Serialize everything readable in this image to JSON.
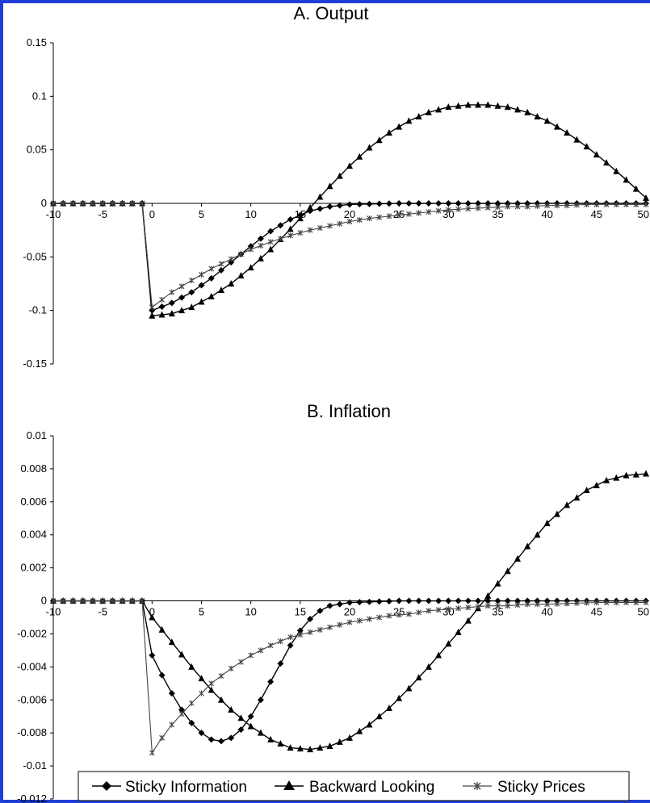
{
  "chart_data": [
    {
      "panel": "A",
      "type": "line",
      "title": "A. Output",
      "xlabel": "",
      "ylabel": "",
      "xlim": [
        -10,
        50
      ],
      "ylim": [
        -0.15,
        0.15
      ],
      "x_ticks": [
        "-10",
        "-5",
        "0",
        "5",
        "10",
        "15",
        "20",
        "25",
        "30",
        "35",
        "40",
        "45",
        "50"
      ],
      "y_ticks": [
        "0.15",
        "0.1",
        "0.05",
        "0",
        "-0.05",
        "-0.1",
        "-0.15"
      ],
      "grid": false,
      "series": [
        {
          "name": "Sticky Information",
          "marker": "diamond",
          "color": "#000000",
          "points": [
            [
              -10,
              0
            ],
            [
              -1,
              0
            ],
            [
              0,
              -0.1
            ],
            [
              2,
              -0.093
            ],
            [
              4,
              -0.083
            ],
            [
              6,
              -0.07
            ],
            [
              8,
              -0.055
            ],
            [
              10,
              -0.04
            ],
            [
              12,
              -0.026
            ],
            [
              14,
              -0.015
            ],
            [
              16,
              -0.007
            ],
            [
              18,
              -0.003
            ],
            [
              20,
              -0.001
            ],
            [
              25,
              0
            ],
            [
              30,
              0
            ],
            [
              35,
              0
            ],
            [
              40,
              0
            ],
            [
              45,
              0
            ],
            [
              50,
              0
            ]
          ]
        },
        {
          "name": "Backward Looking",
          "marker": "triangle",
          "color": "#000000",
          "points": [
            [
              -10,
              0
            ],
            [
              -1,
              0
            ],
            [
              0,
              -0.105
            ],
            [
              2,
              -0.103
            ],
            [
              4,
              -0.097
            ],
            [
              6,
              -0.087
            ],
            [
              8,
              -0.075
            ],
            [
              10,
              -0.06
            ],
            [
              12,
              -0.043
            ],
            [
              14,
              -0.024
            ],
            [
              16,
              -0.004
            ],
            [
              18,
              0.016
            ],
            [
              20,
              0.035
            ],
            [
              22,
              0.052
            ],
            [
              24,
              0.066
            ],
            [
              26,
              0.077
            ],
            [
              28,
              0.085
            ],
            [
              30,
              0.09
            ],
            [
              32,
              0.092
            ],
            [
              34,
              0.092
            ],
            [
              36,
              0.09
            ],
            [
              38,
              0.085
            ],
            [
              40,
              0.077
            ],
            [
              42,
              0.066
            ],
            [
              44,
              0.053
            ],
            [
              46,
              0.038
            ],
            [
              48,
              0.022
            ],
            [
              50,
              0.005
            ]
          ]
        },
        {
          "name": "Sticky Prices",
          "marker": "asterisk",
          "color": "#444444",
          "points": [
            [
              -10,
              0
            ],
            [
              -1,
              0
            ],
            [
              0,
              -0.097
            ],
            [
              2,
              -0.083
            ],
            [
              4,
              -0.072
            ],
            [
              6,
              -0.061
            ],
            [
              8,
              -0.052
            ],
            [
              10,
              -0.043
            ],
            [
              12,
              -0.036
            ],
            [
              14,
              -0.03
            ],
            [
              16,
              -0.025
            ],
            [
              18,
              -0.021
            ],
            [
              20,
              -0.017
            ],
            [
              22,
              -0.014
            ],
            [
              24,
              -0.012
            ],
            [
              26,
              -0.01
            ],
            [
              28,
              -0.008
            ],
            [
              30,
              -0.006
            ],
            [
              32,
              -0.005
            ],
            [
              34,
              -0.004
            ],
            [
              36,
              -0.003
            ],
            [
              38,
              -0.003
            ],
            [
              40,
              -0.002
            ],
            [
              42,
              -0.002
            ],
            [
              44,
              -0.001
            ],
            [
              46,
              -0.001
            ],
            [
              48,
              -0.001
            ],
            [
              50,
              -0.001
            ]
          ]
        }
      ]
    },
    {
      "panel": "B",
      "type": "line",
      "title": "B. Inflation",
      "xlabel": "",
      "ylabel": "",
      "xlim": [
        -10,
        50
      ],
      "ylim": [
        -0.012,
        0.01
      ],
      "x_ticks": [
        "-10",
        "-5",
        "0",
        "5",
        "10",
        "15",
        "20",
        "25",
        "30",
        "35",
        "40",
        "45",
        "50"
      ],
      "y_ticks": [
        "0.01",
        "0.008",
        "0.006",
        "0.004",
        "0.002",
        "0",
        "-0.002",
        "-0.004",
        "-0.006",
        "-0.008",
        "-0.01",
        "-0.012"
      ],
      "grid": false,
      "series": [
        {
          "name": "Sticky Information",
          "marker": "diamond",
          "color": "#000000",
          "points": [
            [
              -10,
              0
            ],
            [
              -1,
              0
            ],
            [
              0,
              -0.0033
            ],
            [
              1,
              -0.0045
            ],
            [
              2,
              -0.0056
            ],
            [
              3,
              -0.0066
            ],
            [
              4,
              -0.0074
            ],
            [
              5,
              -0.008
            ],
            [
              6,
              -0.0084
            ],
            [
              7,
              -0.0085
            ],
            [
              8,
              -0.0083
            ],
            [
              9,
              -0.0078
            ],
            [
              10,
              -0.007
            ],
            [
              11,
              -0.006
            ],
            [
              12,
              -0.0049
            ],
            [
              13,
              -0.0038
            ],
            [
              14,
              -0.0027
            ],
            [
              15,
              -0.0018
            ],
            [
              16,
              -0.0011
            ],
            [
              17,
              -0.0006
            ],
            [
              18,
              -0.0003
            ],
            [
              20,
              -0.0001
            ],
            [
              25,
              0
            ],
            [
              30,
              0
            ],
            [
              35,
              0
            ],
            [
              40,
              0
            ],
            [
              45,
              0
            ],
            [
              50,
              0
            ]
          ]
        },
        {
          "name": "Backward Looking",
          "marker": "triangle",
          "color": "#000000",
          "points": [
            [
              -10,
              0
            ],
            [
              -1,
              0
            ],
            [
              0,
              -0.001
            ],
            [
              2,
              -0.0025
            ],
            [
              4,
              -0.004
            ],
            [
              6,
              -0.0054
            ],
            [
              8,
              -0.0066
            ],
            [
              10,
              -0.0076
            ],
            [
              12,
              -0.0084
            ],
            [
              14,
              -0.0089
            ],
            [
              16,
              -0.009
            ],
            [
              18,
              -0.0088
            ],
            [
              20,
              -0.0083
            ],
            [
              22,
              -0.0075
            ],
            [
              24,
              -0.0065
            ],
            [
              26,
              -0.0053
            ],
            [
              28,
              -0.004
            ],
            [
              30,
              -0.0026
            ],
            [
              32,
              -0.0012
            ],
            [
              34,
              0.0003
            ],
            [
              36,
              0.0018
            ],
            [
              38,
              0.0033
            ],
            [
              40,
              0.0047
            ],
            [
              42,
              0.0058
            ],
            [
              44,
              0.0067
            ],
            [
              46,
              0.0073
            ],
            [
              48,
              0.0076
            ],
            [
              50,
              0.0077
            ]
          ]
        },
        {
          "name": "Sticky Prices",
          "marker": "asterisk",
          "color": "#444444",
          "points": [
            [
              -10,
              0
            ],
            [
              -1,
              0
            ],
            [
              0,
              -0.0092
            ],
            [
              1,
              -0.0083
            ],
            [
              2,
              -0.0075
            ],
            [
              4,
              -0.0062
            ],
            [
              6,
              -0.005
            ],
            [
              8,
              -0.0041
            ],
            [
              10,
              -0.0033
            ],
            [
              12,
              -0.0027
            ],
            [
              14,
              -0.0022
            ],
            [
              16,
              -0.0019
            ],
            [
              18,
              -0.0016
            ],
            [
              20,
              -0.0013
            ],
            [
              22,
              -0.0011
            ],
            [
              24,
              -0.0009
            ],
            [
              26,
              -0.0008
            ],
            [
              28,
              -0.0006
            ],
            [
              30,
              -0.0005
            ],
            [
              32,
              -0.0004
            ],
            [
              34,
              -0.0003
            ],
            [
              36,
              -0.0003
            ],
            [
              38,
              -0.0002
            ],
            [
              40,
              -0.0002
            ],
            [
              45,
              -0.0001
            ],
            [
              50,
              -0.0001
            ]
          ]
        }
      ]
    }
  ],
  "legend": {
    "items": [
      {
        "label": "Sticky Information",
        "marker": "diamond"
      },
      {
        "label": "Backward Looking",
        "marker": "triangle"
      },
      {
        "label": "Sticky Prices",
        "marker": "asterisk"
      }
    ]
  }
}
